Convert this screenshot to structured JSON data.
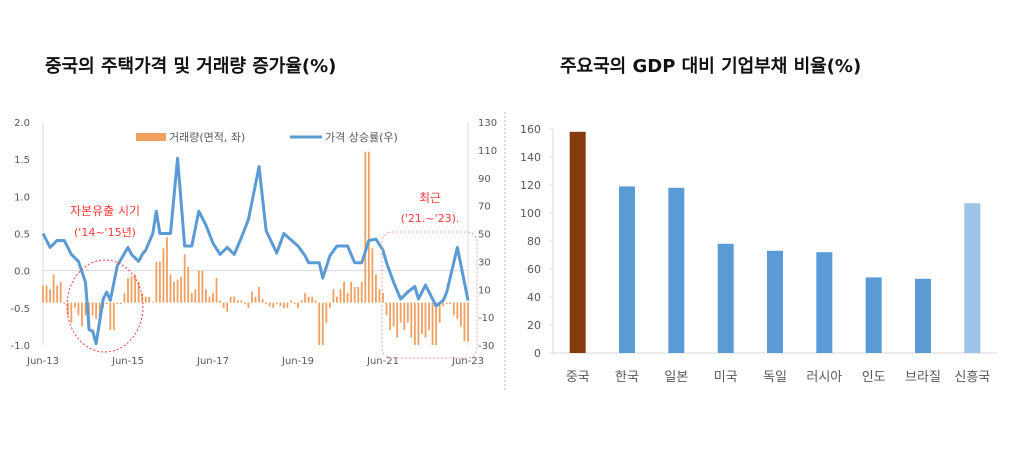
{
  "chart_data": [
    {
      "type": "bar+line",
      "title": "중국의 주택가격 및 거래량 증가율(%)",
      "x_tick_labels": [
        "Jun-13",
        "Jun-15",
        "Jun-17",
        "Jun-19",
        "Jun-21",
        "Jun-23"
      ],
      "y_left": {
        "ticks": [
          "2.0",
          "1.5",
          "1.0",
          "0.5",
          "0.0",
          "-0.5",
          "-1.0"
        ],
        "range": [
          -1.0,
          2.0
        ]
      },
      "y_right": {
        "ticks": [
          "130",
          "110",
          "90",
          "70",
          "50",
          "30",
          "10",
          "-10",
          "-30"
        ],
        "range": [
          -30,
          130
        ]
      },
      "legend": {
        "placement": "top",
        "bars_label": "거래량(면적, 좌)",
        "line_label": "가격 상승률(우)"
      },
      "colors": {
        "bars": "#f0a060",
        "line": "#5b9bd5",
        "annotation": "#ff3b3b"
      },
      "bar_series": {
        "name": "거래량(면적, 좌)",
        "axis": "left",
        "start": "2013-06",
        "frequency": "monthly",
        "values": [
          -0.2,
          -0.2,
          -0.25,
          -0.05,
          -0.2,
          -0.15,
          -0.45,
          -0.6,
          -0.7,
          -0.5,
          -0.6,
          -0.75,
          -0.6,
          -0.7,
          -0.6,
          -0.65,
          -0.7,
          -0.5,
          -0.45,
          -0.8,
          -0.8,
          -0.45,
          -0.45,
          -0.3,
          -0.1,
          -0.08,
          -0.05,
          -0.15,
          -0.3,
          -0.35,
          -0.35,
          -0.42,
          0.12,
          0.12,
          0.3,
          0.45,
          -0.05,
          -0.15,
          -0.12,
          -0.08,
          0.22,
          0.05,
          -0.3,
          -0.25,
          0.0,
          0.0,
          -0.25,
          -0.35,
          -0.3,
          -0.1,
          -0.4,
          -0.5,
          -0.55,
          -0.35,
          -0.35,
          -0.4,
          -0.4,
          -0.45,
          -0.5,
          -0.28,
          -0.35,
          -0.22,
          -0.38,
          -0.45,
          -0.48,
          -0.5,
          -0.45,
          -0.48,
          -0.5,
          -0.5,
          -0.4,
          -0.45,
          -0.5,
          -0.4,
          -0.3,
          -0.35,
          -0.35,
          -0.4,
          -1.0,
          -1.0,
          -0.7,
          -0.5,
          -0.25,
          -0.35,
          -0.25,
          -0.15,
          -0.3,
          -0.15,
          -0.22,
          -0.22,
          -0.15,
          1.6,
          1.6,
          0.3,
          -0.05,
          -0.25,
          -0.3,
          -0.6,
          -0.8,
          -0.75,
          -0.9,
          -0.7,
          -0.8,
          -0.7,
          -0.9,
          -1.0,
          -1.0,
          -0.85,
          -0.9,
          -0.8,
          -1.0,
          -1.0,
          -0.7,
          -0.48,
          -0.45,
          -0.45,
          -0.6,
          -0.65,
          -0.75,
          -0.95,
          -0.95
        ]
      },
      "line_series": {
        "name": "가격 상승률(우)",
        "axis": "right",
        "points": [
          [
            "2013-06",
            50
          ],
          [
            "2013-08",
            40
          ],
          [
            "2013-10",
            45
          ],
          [
            "2013-12",
            45
          ],
          [
            "2014-02",
            35
          ],
          [
            "2014-04",
            30
          ],
          [
            "2014-06",
            15
          ],
          [
            "2014-07",
            -19
          ],
          [
            "2014-08",
            -20
          ],
          [
            "2014-09",
            -29
          ],
          [
            "2014-11",
            3
          ],
          [
            "2014-12",
            8
          ],
          [
            "2015-01",
            2
          ],
          [
            "2015-03",
            27
          ],
          [
            "2015-06",
            40
          ],
          [
            "2015-07",
            35
          ],
          [
            "2015-09",
            30
          ],
          [
            "2015-10",
            35
          ],
          [
            "2015-11",
            38
          ],
          [
            "2016-01",
            50
          ],
          [
            "2016-02",
            66
          ],
          [
            "2016-03",
            50
          ],
          [
            "2016-06",
            50
          ],
          [
            "2016-08",
            104
          ],
          [
            "2016-10",
            41
          ],
          [
            "2016-12",
            41
          ],
          [
            "2017-02",
            66
          ],
          [
            "2017-04",
            56
          ],
          [
            "2017-06",
            43
          ],
          [
            "2017-08",
            35
          ],
          [
            "2017-10",
            40
          ],
          [
            "2017-12",
            35
          ],
          [
            "2018-02",
            47
          ],
          [
            "2018-04",
            60
          ],
          [
            "2018-07",
            98
          ],
          [
            "2018-09",
            52
          ],
          [
            "2018-12",
            36
          ],
          [
            "2019-02",
            50
          ],
          [
            "2019-06",
            41
          ],
          [
            "2019-08",
            34
          ],
          [
            "2019-09",
            29
          ],
          [
            "2019-12",
            29
          ],
          [
            "2020-01",
            18
          ],
          [
            "2020-03",
            34
          ],
          [
            "2020-05",
            41
          ],
          [
            "2020-08",
            41
          ],
          [
            "2020-10",
            29
          ],
          [
            "2020-12",
            29
          ],
          [
            "2021-02",
            45
          ],
          [
            "2021-04",
            46
          ],
          [
            "2021-06",
            38
          ],
          [
            "2021-07",
            29
          ],
          [
            "2021-09",
            15
          ],
          [
            "2021-11",
            3
          ],
          [
            "2022-01",
            8
          ],
          [
            "2022-03",
            12
          ],
          [
            "2022-04",
            3
          ],
          [
            "2022-06",
            13
          ],
          [
            "2022-08",
            3
          ],
          [
            "2022-09",
            -2
          ],
          [
            "2022-11",
            2
          ],
          [
            "2022-12",
            8
          ],
          [
            "2023-03",
            40
          ],
          [
            "2023-06",
            2
          ]
        ]
      },
      "annotations": [
        {
          "text": "자본유출 시기",
          "sub": "('14~'15년)"
        },
        {
          "text": "최근",
          "sub": "('21.~'23)."
        }
      ]
    },
    {
      "type": "bar",
      "title": "주요국의 GDP 대비 기업부채 비율(%)",
      "categories": [
        "중국",
        "한국",
        "일본",
        "미국",
        "독일",
        "러시아",
        "인도",
        "브라질",
        "신흥국"
      ],
      "values": [
        158,
        119,
        118,
        78,
        73,
        72,
        54,
        53,
        107
      ],
      "colors": [
        "#843c0c",
        "#5b9bd5",
        "#5b9bd5",
        "#5b9bd5",
        "#5b9bd5",
        "#5b9bd5",
        "#5b9bd5",
        "#5b9bd5",
        "#9dc3e6"
      ],
      "ylim": [
        0,
        160
      ],
      "y_ticks": [
        "0",
        "20",
        "40",
        "60",
        "80",
        "100",
        "120",
        "140",
        "160"
      ]
    }
  ]
}
